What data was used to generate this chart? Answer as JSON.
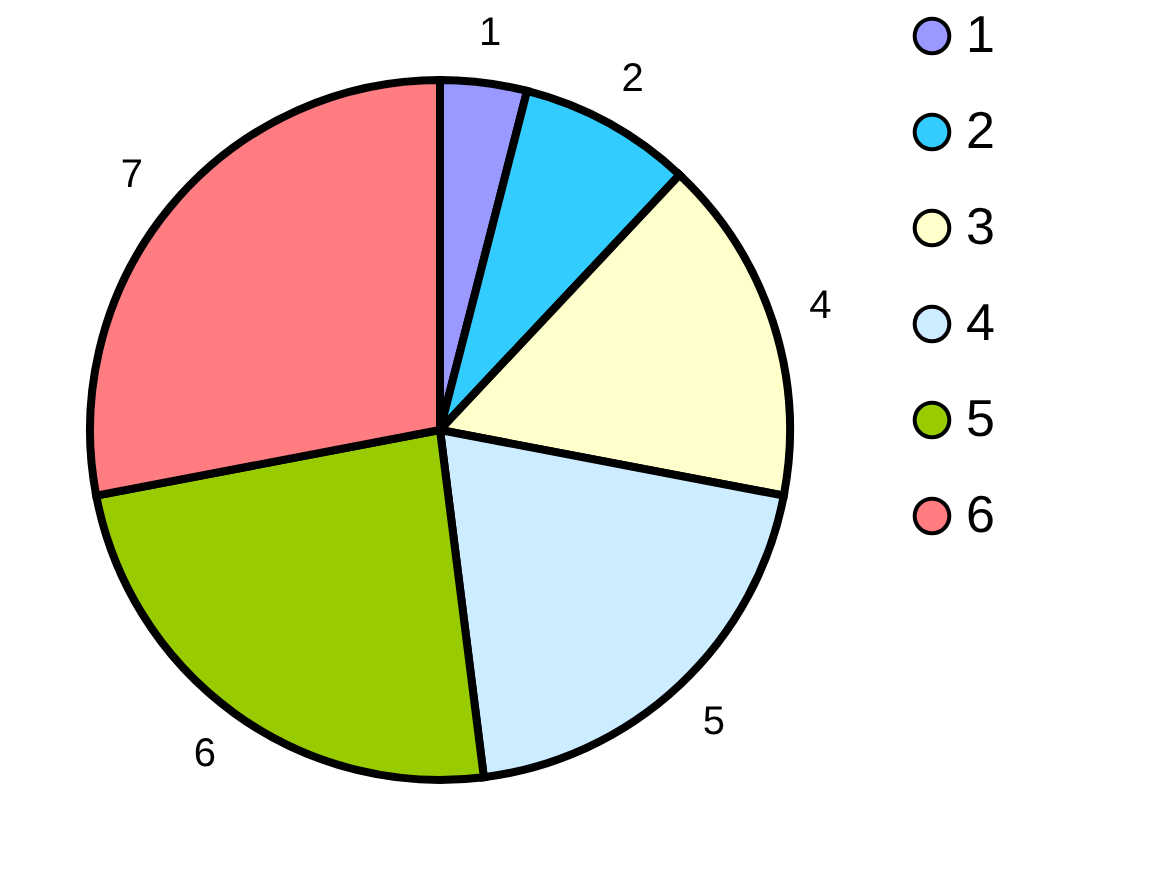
{
  "chart_data": {
    "type": "pie",
    "categories": [
      "1",
      "2",
      "3",
      "4",
      "5",
      "6"
    ],
    "values": [
      1,
      2,
      4,
      5,
      6,
      7
    ],
    "colors": [
      "#9999ff",
      "#33ccff",
      "#ffffcc",
      "#ccecff",
      "#99cc00",
      "#ff7c80"
    ],
    "data_labels": true,
    "legend": "right"
  }
}
